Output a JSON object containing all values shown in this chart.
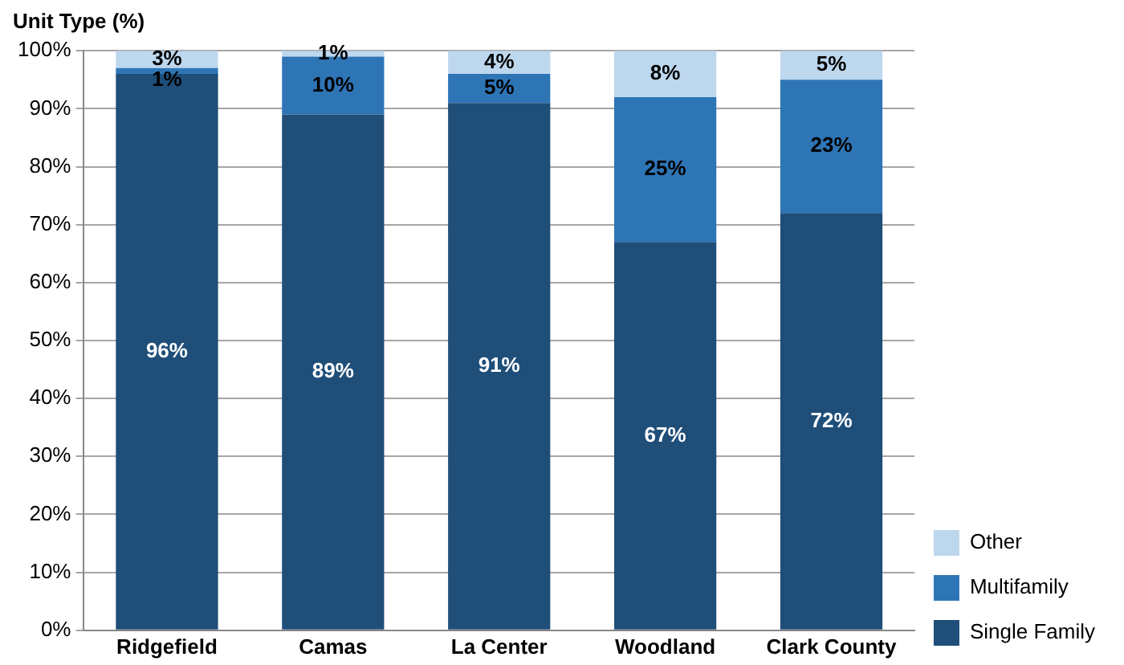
{
  "chart_data": {
    "type": "bar",
    "stacked": true,
    "ylabel": "Unit Type (%)",
    "categories": [
      "Ridgefield",
      "Camas",
      "La Center",
      "Woodland",
      "Clark County"
    ],
    "series": [
      {
        "name": "Single Family",
        "color": "#1f4e79",
        "values": [
          96,
          89,
          91,
          67,
          72
        ],
        "value_labels": [
          "96%",
          "89%",
          "91%",
          "67%",
          "72%"
        ]
      },
      {
        "name": "Multifamily",
        "color": "#2e75b6",
        "values": [
          1,
          10,
          5,
          25,
          23
        ],
        "value_labels": [
          "1%",
          "10%",
          "5%",
          "25%",
          "23%"
        ]
      },
      {
        "name": "Other",
        "color": "#bdd7ee",
        "values": [
          3,
          1,
          4,
          8,
          5
        ],
        "value_labels": [
          "3%",
          "1%",
          "4%",
          "8%",
          "5%"
        ]
      }
    ],
    "ylim": [
      0,
      100
    ],
    "yticks": [
      {
        "value": 0,
        "label": "0%"
      },
      {
        "value": 10,
        "label": "10%"
      },
      {
        "value": 20,
        "label": "20%"
      },
      {
        "value": 30,
        "label": "30%"
      },
      {
        "value": 40,
        "label": "40%"
      },
      {
        "value": 50,
        "label": "50%"
      },
      {
        "value": 60,
        "label": "60%"
      },
      {
        "value": 70,
        "label": "70%"
      },
      {
        "value": 80,
        "label": "80%"
      },
      {
        "value": 90,
        "label": "90%"
      },
      {
        "value": 100,
        "label": "100%"
      }
    ],
    "grid": "y",
    "legend": "bottom right"
  }
}
